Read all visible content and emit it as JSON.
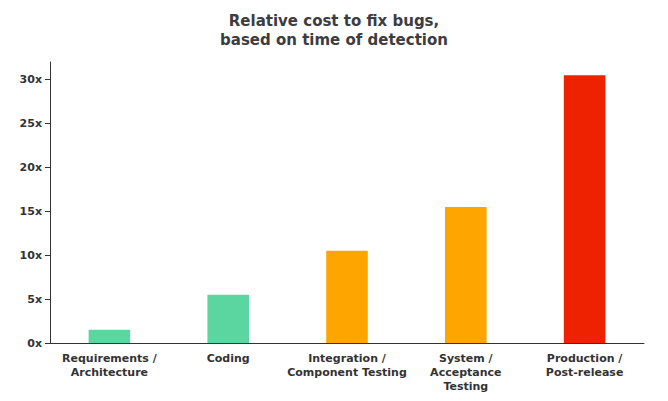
{
  "chart_data": {
    "type": "bar",
    "title": "Relative cost to fix bugs,\nbased on time of detection",
    "categories": [
      "Requirements /\nArchitecture",
      "Coding",
      "Integration /\nComponent Testing",
      "System /\nAcceptance\nTesting",
      "Production /\nPost-release"
    ],
    "values": [
      1.5,
      5.5,
      10.5,
      15.5,
      30.5
    ],
    "colors": [
      "#5CD6A0",
      "#5CD6A0",
      "#FFA500",
      "#FFA500",
      "#EE2200"
    ],
    "ylim": [
      0,
      32
    ],
    "yticks": [
      {
        "value": 0,
        "label": "0x"
      },
      {
        "value": 5,
        "label": "5x"
      },
      {
        "value": 10,
        "label": "10x"
      },
      {
        "value": 15,
        "label": "15x"
      },
      {
        "value": 20,
        "label": "20x"
      },
      {
        "value": 25,
        "label": "25x"
      },
      {
        "value": 30,
        "label": "30x"
      }
    ],
    "grid": false
  }
}
